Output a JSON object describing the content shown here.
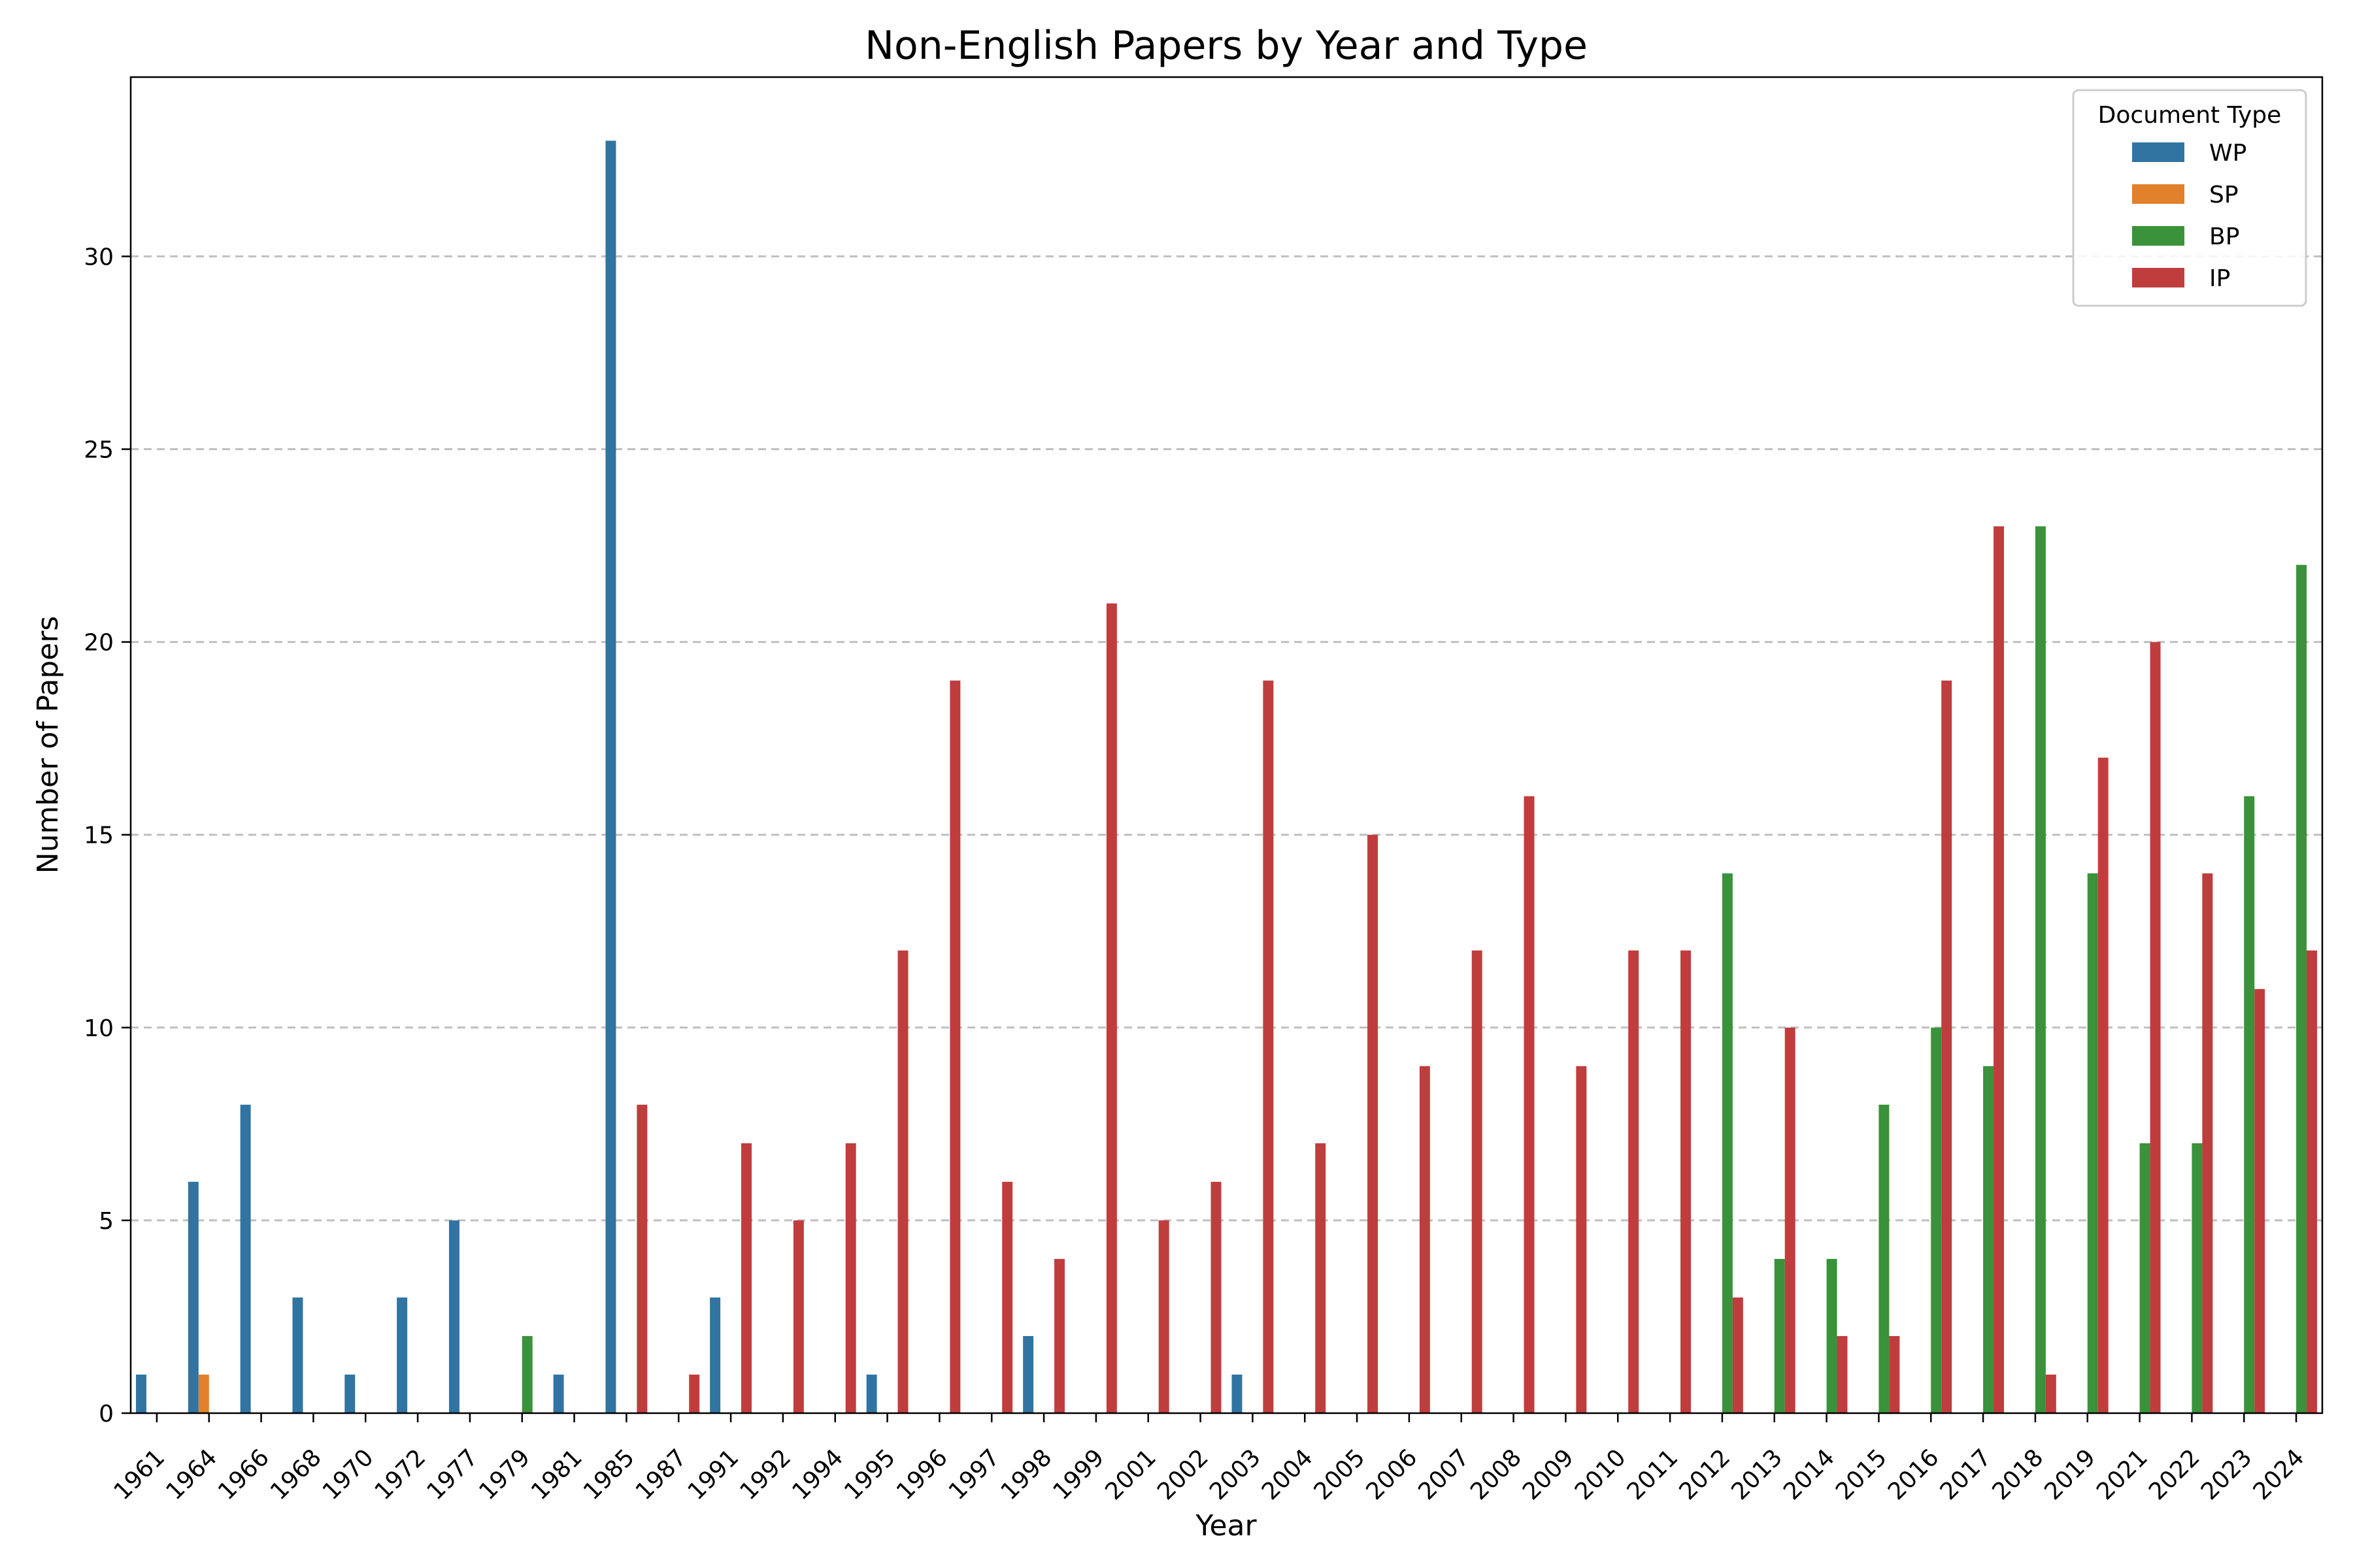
{
  "chart_data": {
    "type": "bar",
    "title": "Non-English Papers by Year and Type",
    "xlabel": "Year",
    "ylabel": "Number of Papers",
    "ylim": [
      0,
      34.65
    ],
    "yticks": [
      0,
      5,
      10,
      15,
      20,
      25,
      30
    ],
    "grid": "y-dashed",
    "legend": {
      "title": "Document Type",
      "placement": "top-right"
    },
    "categories": [
      "1961",
      "1964",
      "1966",
      "1968",
      "1970",
      "1972",
      "1977",
      "1979",
      "1981",
      "1985",
      "1987",
      "1991",
      "1992",
      "1994",
      "1995",
      "1996",
      "1997",
      "1998",
      "1999",
      "2001",
      "2002",
      "2003",
      "2004",
      "2005",
      "2006",
      "2007",
      "2008",
      "2009",
      "2010",
      "2011",
      "2012",
      "2013",
      "2014",
      "2015",
      "2016",
      "2017",
      "2018",
      "2019",
      "2021",
      "2022",
      "2023",
      "2024"
    ],
    "series": [
      {
        "name": "WP",
        "color": "#3274a1",
        "values": [
          1,
          6,
          8,
          3,
          1,
          3,
          5,
          0,
          1,
          33,
          0,
          3,
          0,
          0,
          1,
          0,
          0,
          2,
          0,
          0,
          0,
          1,
          0,
          0,
          0,
          0,
          0,
          0,
          0,
          0,
          0,
          0,
          0,
          0,
          0,
          0,
          0,
          0,
          0,
          0,
          0,
          0
        ]
      },
      {
        "name": "SP",
        "color": "#e1812c",
        "values": [
          0,
          1,
          0,
          0,
          0,
          0,
          0,
          0,
          0,
          0,
          0,
          0,
          0,
          0,
          0,
          0,
          0,
          0,
          0,
          0,
          0,
          0,
          0,
          0,
          0,
          0,
          0,
          0,
          0,
          0,
          0,
          0,
          0,
          0,
          0,
          0,
          0,
          0,
          0,
          0,
          0,
          0
        ]
      },
      {
        "name": "BP",
        "color": "#3a923a",
        "values": [
          0,
          0,
          0,
          0,
          0,
          0,
          0,
          2,
          0,
          0,
          0,
          0,
          0,
          0,
          0,
          0,
          0,
          0,
          0,
          0,
          0,
          0,
          0,
          0,
          0,
          0,
          0,
          0,
          0,
          0,
          14,
          4,
          4,
          8,
          10,
          9,
          23,
          14,
          7,
          7,
          16,
          22
        ]
      },
      {
        "name": "IP",
        "color": "#c03d3e",
        "values": [
          0,
          0,
          0,
          0,
          0,
          0,
          0,
          0,
          0,
          8,
          1,
          7,
          5,
          7,
          12,
          19,
          6,
          4,
          21,
          5,
          6,
          19,
          7,
          15,
          9,
          12,
          16,
          9,
          12,
          12,
          3,
          10,
          2,
          2,
          19,
          23,
          1,
          17,
          20,
          14,
          11,
          12
        ]
      }
    ]
  }
}
